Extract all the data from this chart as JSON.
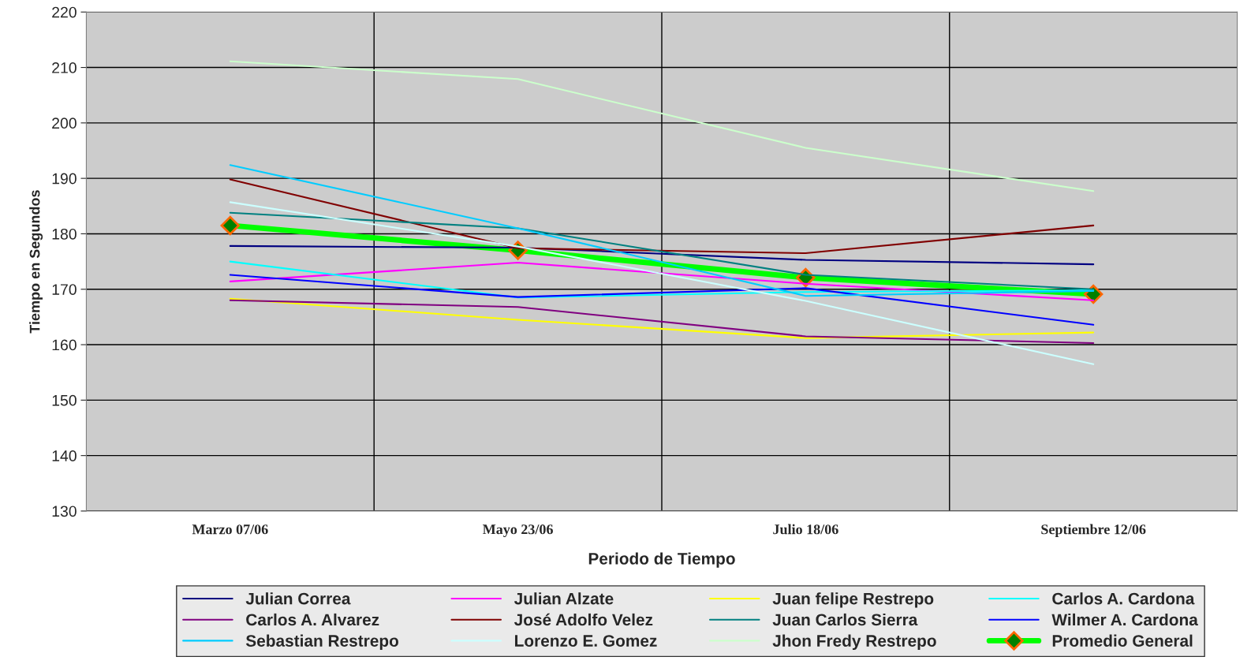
{
  "chart_data": {
    "type": "line",
    "xlabel": "Periodo de Tiempo",
    "ylabel": "Tiempo en Segundos",
    "categories": [
      "Marzo 07/06",
      "Mayo 23/06",
      "Julio 18/06",
      "Septiembre 12/06"
    ],
    "ylim": [
      130,
      220
    ],
    "yticks": [
      130,
      140,
      150,
      160,
      170,
      180,
      190,
      200,
      210,
      220
    ],
    "grid": true,
    "legend": "bottom",
    "marker": "none",
    "line_style": "solid",
    "series": [
      {
        "name": "Julian Correa",
        "color": "#000080",
        "values": [
          177.8,
          177.5,
          175.3,
          174.5
        ]
      },
      {
        "name": "Julian Alzate",
        "color": "#ff00ff",
        "values": [
          171.4,
          174.8,
          171.0,
          168.0
        ]
      },
      {
        "name": "Juan felipe Restrepo",
        "color": "#ffff00",
        "values": [
          168.3,
          164.5,
          161.2,
          162.2
        ]
      },
      {
        "name": "Carlos A. Cardona",
        "color": "#00ffff",
        "values": [
          175.0,
          168.5,
          169.5,
          169.8
        ]
      },
      {
        "name": "Carlos A. Alvarez",
        "color": "#800080",
        "values": [
          168.0,
          166.8,
          161.5,
          160.3
        ]
      },
      {
        "name": "José Adolfo Velez",
        "color": "#800000",
        "values": [
          189.8,
          177.4,
          176.5,
          181.5
        ]
      },
      {
        "name": "Juan Carlos Sierra",
        "color": "#008080",
        "values": [
          183.8,
          181.0,
          172.6,
          170.0
        ]
      },
      {
        "name": "Wilmer A. Cardona",
        "color": "#0000ff",
        "values": [
          172.6,
          168.6,
          170.2,
          163.6
        ]
      },
      {
        "name": "Sebastian Restrepo",
        "color": "#00ccff",
        "values": [
          192.4,
          181.0,
          168.8,
          169.7
        ]
      },
      {
        "name": "Lorenzo E. Gomez",
        "color": "#ccffff",
        "values": [
          185.7,
          177.7,
          167.9,
          156.5
        ]
      },
      {
        "name": "Jhon Fredy Restrepo",
        "color": "#ccffcc",
        "values": [
          211.1,
          207.9,
          195.5,
          187.7
        ]
      },
      {
        "name": "Promedio General",
        "color": "#00ff00",
        "values": [
          181.5,
          177.0,
          172.1,
          169.1
        ],
        "marker": "diamond"
      }
    ]
  }
}
